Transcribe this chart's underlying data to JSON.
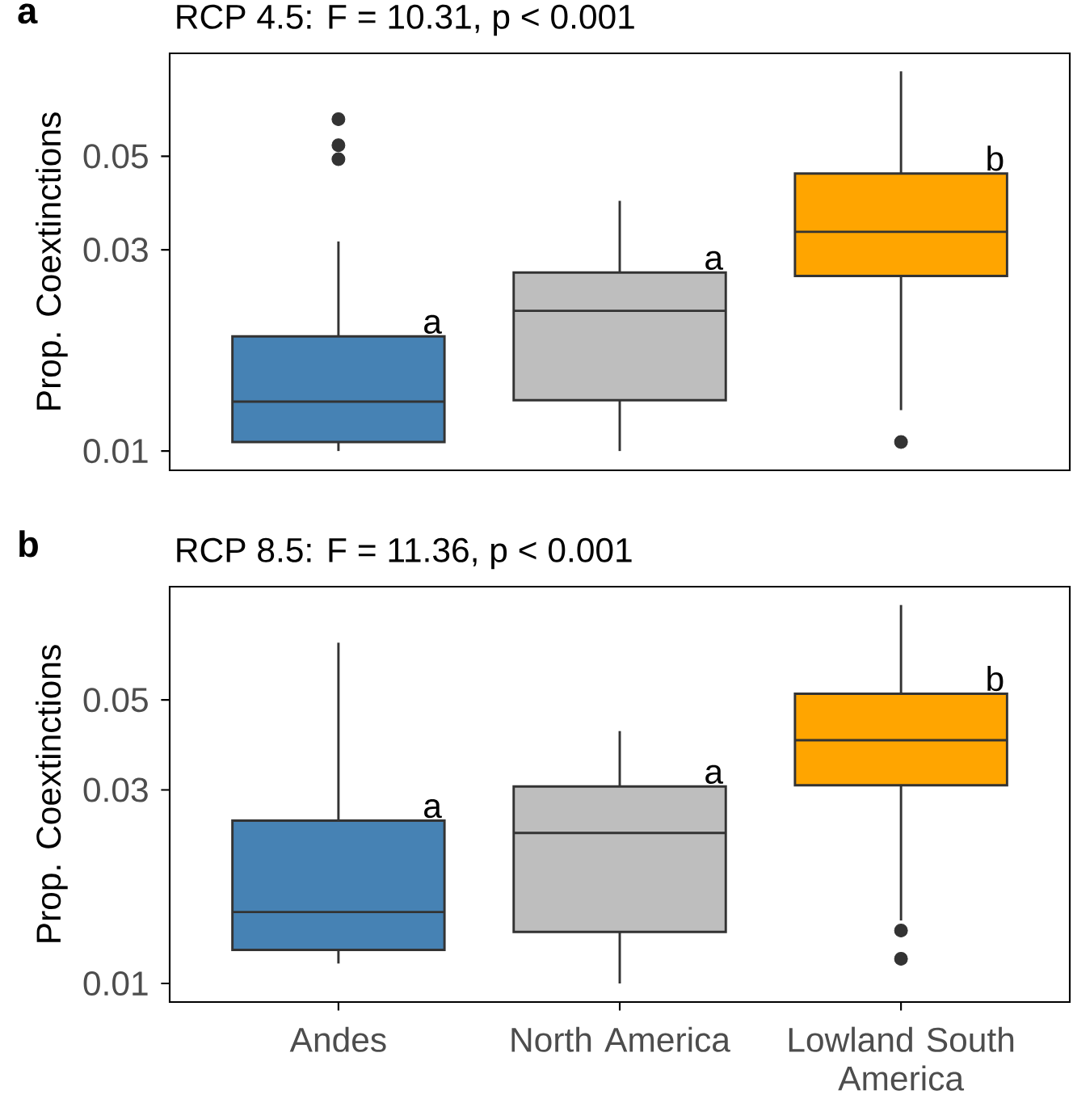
{
  "chart_data": [
    {
      "type": "box",
      "title": "RCP 4.5: F = 10.31, p < 0.001",
      "ylabel": "Prop. Coextinctions",
      "categories": [
        "Andes",
        "North America",
        "Lowland South America"
      ],
      "colors": [
        "#4682b4",
        "#bebebe",
        "#ffa500"
      ],
      "boxes": [
        {
          "low": 0.01,
          "q1": 0.0105,
          "median": 0.0131,
          "q3": 0.0187,
          "high": 0.0314,
          "outliers": [
            0.0612,
            0.0531,
            0.0492
          ]
        },
        {
          "low": 0.01,
          "q1": 0.0132,
          "median": 0.0215,
          "q3": 0.0265,
          "high": 0.0392
        },
        {
          "low": 0.0125,
          "q1": 0.026,
          "median": 0.0331,
          "q3": 0.0455,
          "high": 0.0795,
          "outliers": [
            0.0105
          ]
        }
      ],
      "log": true,
      "ylim": [
        0.009,
        0.0877
      ],
      "yticks": [
        0.01,
        0.03,
        0.05
      ],
      "tick_labels": "y",
      "annotations": [
        "a",
        {
          "text": "a",
          "x": "Andes",
          "y": 0.0187
        },
        {
          "text": "a",
          "x": "North America",
          "y": 0.0265
        },
        {
          "text": "b",
          "x": "Lowland South America",
          "y": 0.0455
        }
      ]
    },
    {
      "type": "box",
      "title": "RCP 8.5: F = 11.36, p < 0.001",
      "ylabel": "Prop. Coextinctions",
      "categories": [
        "Andes",
        "North America",
        "Lowland South America"
      ],
      "colors": [
        "#4682b4",
        "#bebebe",
        "#ffa500"
      ],
      "boxes": [
        {
          "low": 0.0112,
          "q1": 0.0121,
          "median": 0.015,
          "q3": 0.0252,
          "high": 0.0692
        },
        {
          "low": 0.01,
          "q1": 0.0134,
          "median": 0.0235,
          "q3": 0.0306,
          "high": 0.0419
        },
        {
          "low": 0.0143,
          "q1": 0.0308,
          "median": 0.0398,
          "q3": 0.0518,
          "high": 0.0857,
          "outliers": [
            0.0135,
            0.0115
          ]
        }
      ],
      "log": true,
      "ylim": [
        0.009,
        0.0951
      ],
      "yticks": [
        0.01,
        0.03,
        0.05
      ],
      "annotations": [
        "b",
        {
          "text": "a",
          "x": "Andes",
          "y": 0.0252
        },
        {
          "text": "a",
          "x": "North America",
          "y": 0.0306
        },
        {
          "text": "b",
          "x": "Lowland South America",
          "y": 0.0518
        }
      ]
    }
  ]
}
